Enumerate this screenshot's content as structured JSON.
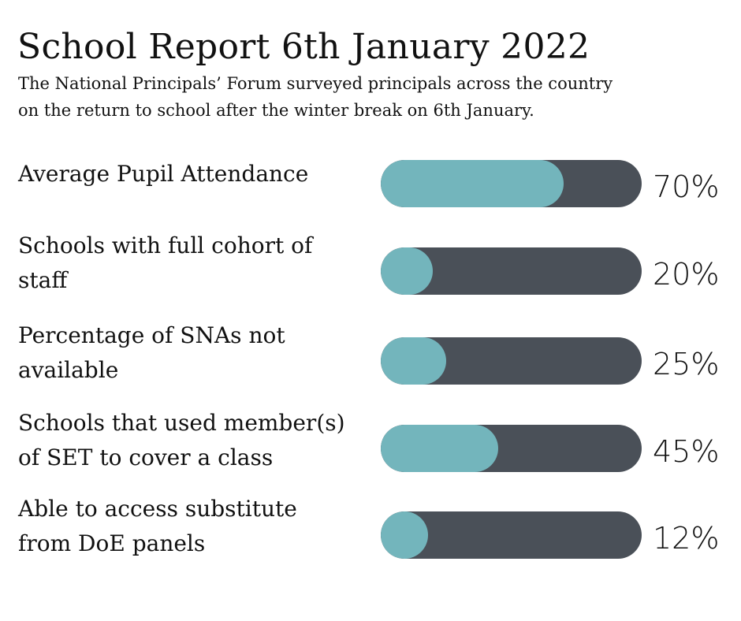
{
  "title": "School Report 6th January 2022",
  "subtitle_lines": [
    "The National Principals’ Forum surveyed principals across the country",
    "on the return to school after the winter break on 6th January."
  ],
  "colors": {
    "fill": "#73b5bc",
    "track": "#4a5058",
    "text": "#111111"
  },
  "chart_data": {
    "type": "bar",
    "orientation": "horizontal",
    "title": "School Report 6th January 2022",
    "categories": [
      "Average Pupil Attendance",
      "Schools with full cohort of staff",
      "Percentage of SNAs not available",
      "Schools that used member(s) of SET to cover a class",
      "Able to access substitute from DoE panels"
    ],
    "category_lines": [
      [
        "Average Pupil Attendance"
      ],
      [
        "Schools with full cohort of",
        "staff"
      ],
      [
        "Percentage of SNAs not",
        "available"
      ],
      [
        "Schools that used member(s)",
        "of SET to cover a class"
      ],
      [
        "Able to access substitute",
        "from DoE panels"
      ]
    ],
    "values": [
      70,
      20,
      25,
      45,
      12
    ],
    "value_labels": [
      "70%",
      "20%",
      "25%",
      "45%",
      "12%"
    ],
    "xlim": [
      0,
      100
    ],
    "grid": false,
    "legend": "none"
  }
}
